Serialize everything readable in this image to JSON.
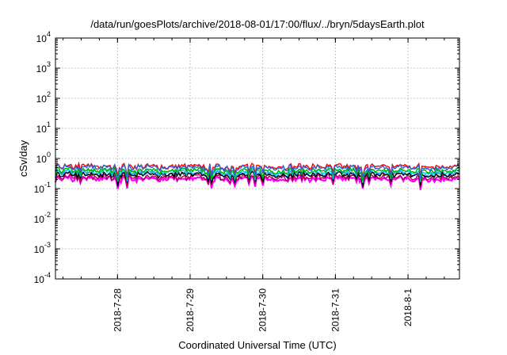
{
  "chart_data": {
    "type": "line",
    "title": "/data/run/goesPlots/archive/2018-08-01/17:00/flux/../bryn/5daysEarth.plot",
    "xlabel": "Coordinated Universal Time (UTC)",
    "ylabel": "cSv/day",
    "yscale": "log",
    "ylim": [
      0.0001,
      10000
    ],
    "yticks": [
      {
        "mantissa": "10",
        "exponent": "-4",
        "value": 0.0001
      },
      {
        "mantissa": "10",
        "exponent": "-3",
        "value": 0.001
      },
      {
        "mantissa": "10",
        "exponent": "-2",
        "value": 0.01
      },
      {
        "mantissa": "10",
        "exponent": "-1",
        "value": 0.1
      },
      {
        "mantissa": "10",
        "exponent": "0",
        "value": 1
      },
      {
        "mantissa": "10",
        "exponent": "1",
        "value": 10
      },
      {
        "mantissa": "10",
        "exponent": "2",
        "value": 100
      },
      {
        "mantissa": "10",
        "exponent": "3",
        "value": 1000
      },
      {
        "mantissa": "10",
        "exponent": "4",
        "value": 10000
      }
    ],
    "xlim": [
      "2018-07-27 03:30",
      "2018-08-01 17:00"
    ],
    "xticks": [
      "2018-7-28",
      "2018-7-29",
      "2018-7-30",
      "2018-7-31",
      "2018-8-1"
    ],
    "grid": true,
    "series": [
      {
        "color": "#ff00ff",
        "level": 0.21
      },
      {
        "color": "#b0004e",
        "level": 0.24
      },
      {
        "color": "#1e90ff",
        "level": 0.31
      },
      {
        "color": "#000000",
        "level": 0.29
      },
      {
        "color": "#00c8c8",
        "level": 0.36
      },
      {
        "color": "#00b000",
        "level": 0.4
      },
      {
        "color": "#ff0000",
        "level": 0.55
      },
      {
        "color": "#3060d0",
        "level": 0.5
      }
    ]
  }
}
